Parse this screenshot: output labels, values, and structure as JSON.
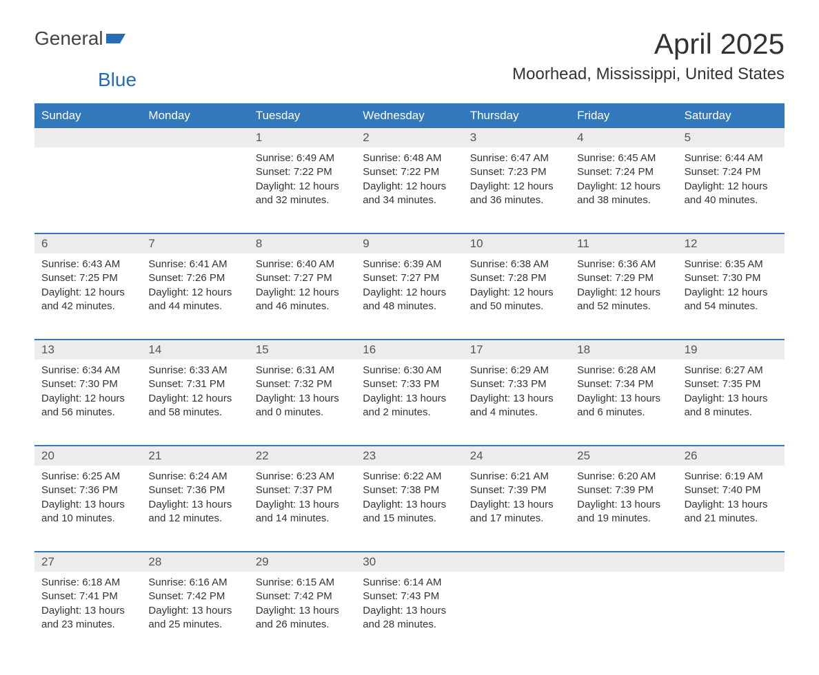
{
  "logo": {
    "text1": "General",
    "text2": "Blue"
  },
  "title": "April 2025",
  "location": "Moorhead, Mississippi, United States",
  "colors": {
    "header_bg": "#3178bd",
    "header_text": "#ffffff",
    "daynum_bg": "#ececec",
    "border": "#3178bd",
    "logo_blue": "#246db6"
  },
  "dayNames": [
    "Sunday",
    "Monday",
    "Tuesday",
    "Wednesday",
    "Thursday",
    "Friday",
    "Saturday"
  ],
  "weeks": [
    {
      "nums": [
        "",
        "",
        "1",
        "2",
        "3",
        "4",
        "5"
      ],
      "cells": [
        {},
        {},
        {
          "sunrise": "6:49 AM",
          "sunset": "7:22 PM",
          "daylight": "12 hours and 32 minutes."
        },
        {
          "sunrise": "6:48 AM",
          "sunset": "7:22 PM",
          "daylight": "12 hours and 34 minutes."
        },
        {
          "sunrise": "6:47 AM",
          "sunset": "7:23 PM",
          "daylight": "12 hours and 36 minutes."
        },
        {
          "sunrise": "6:45 AM",
          "sunset": "7:24 PM",
          "daylight": "12 hours and 38 minutes."
        },
        {
          "sunrise": "6:44 AM",
          "sunset": "7:24 PM",
          "daylight": "12 hours and 40 minutes."
        }
      ]
    },
    {
      "nums": [
        "6",
        "7",
        "8",
        "9",
        "10",
        "11",
        "12"
      ],
      "cells": [
        {
          "sunrise": "6:43 AM",
          "sunset": "7:25 PM",
          "daylight": "12 hours and 42 minutes."
        },
        {
          "sunrise": "6:41 AM",
          "sunset": "7:26 PM",
          "daylight": "12 hours and 44 minutes."
        },
        {
          "sunrise": "6:40 AM",
          "sunset": "7:27 PM",
          "daylight": "12 hours and 46 minutes."
        },
        {
          "sunrise": "6:39 AM",
          "sunset": "7:27 PM",
          "daylight": "12 hours and 48 minutes."
        },
        {
          "sunrise": "6:38 AM",
          "sunset": "7:28 PM",
          "daylight": "12 hours and 50 minutes."
        },
        {
          "sunrise": "6:36 AM",
          "sunset": "7:29 PM",
          "daylight": "12 hours and 52 minutes."
        },
        {
          "sunrise": "6:35 AM",
          "sunset": "7:30 PM",
          "daylight": "12 hours and 54 minutes."
        }
      ]
    },
    {
      "nums": [
        "13",
        "14",
        "15",
        "16",
        "17",
        "18",
        "19"
      ],
      "cells": [
        {
          "sunrise": "6:34 AM",
          "sunset": "7:30 PM",
          "daylight": "12 hours and 56 minutes."
        },
        {
          "sunrise": "6:33 AM",
          "sunset": "7:31 PM",
          "daylight": "12 hours and 58 minutes."
        },
        {
          "sunrise": "6:31 AM",
          "sunset": "7:32 PM",
          "daylight": "13 hours and 0 minutes."
        },
        {
          "sunrise": "6:30 AM",
          "sunset": "7:33 PM",
          "daylight": "13 hours and 2 minutes."
        },
        {
          "sunrise": "6:29 AM",
          "sunset": "7:33 PM",
          "daylight": "13 hours and 4 minutes."
        },
        {
          "sunrise": "6:28 AM",
          "sunset": "7:34 PM",
          "daylight": "13 hours and 6 minutes."
        },
        {
          "sunrise": "6:27 AM",
          "sunset": "7:35 PM",
          "daylight": "13 hours and 8 minutes."
        }
      ]
    },
    {
      "nums": [
        "20",
        "21",
        "22",
        "23",
        "24",
        "25",
        "26"
      ],
      "cells": [
        {
          "sunrise": "6:25 AM",
          "sunset": "7:36 PM",
          "daylight": "13 hours and 10 minutes."
        },
        {
          "sunrise": "6:24 AM",
          "sunset": "7:36 PM",
          "daylight": "13 hours and 12 minutes."
        },
        {
          "sunrise": "6:23 AM",
          "sunset": "7:37 PM",
          "daylight": "13 hours and 14 minutes."
        },
        {
          "sunrise": "6:22 AM",
          "sunset": "7:38 PM",
          "daylight": "13 hours and 15 minutes."
        },
        {
          "sunrise": "6:21 AM",
          "sunset": "7:39 PM",
          "daylight": "13 hours and 17 minutes."
        },
        {
          "sunrise": "6:20 AM",
          "sunset": "7:39 PM",
          "daylight": "13 hours and 19 minutes."
        },
        {
          "sunrise": "6:19 AM",
          "sunset": "7:40 PM",
          "daylight": "13 hours and 21 minutes."
        }
      ]
    },
    {
      "nums": [
        "27",
        "28",
        "29",
        "30",
        "",
        "",
        ""
      ],
      "cells": [
        {
          "sunrise": "6:18 AM",
          "sunset": "7:41 PM",
          "daylight": "13 hours and 23 minutes."
        },
        {
          "sunrise": "6:16 AM",
          "sunset": "7:42 PM",
          "daylight": "13 hours and 25 minutes."
        },
        {
          "sunrise": "6:15 AM",
          "sunset": "7:42 PM",
          "daylight": "13 hours and 26 minutes."
        },
        {
          "sunrise": "6:14 AM",
          "sunset": "7:43 PM",
          "daylight": "13 hours and 28 minutes."
        },
        {},
        {},
        {}
      ]
    }
  ],
  "labels": {
    "sunrise": "Sunrise: ",
    "sunset": "Sunset: ",
    "daylight": "Daylight: "
  }
}
